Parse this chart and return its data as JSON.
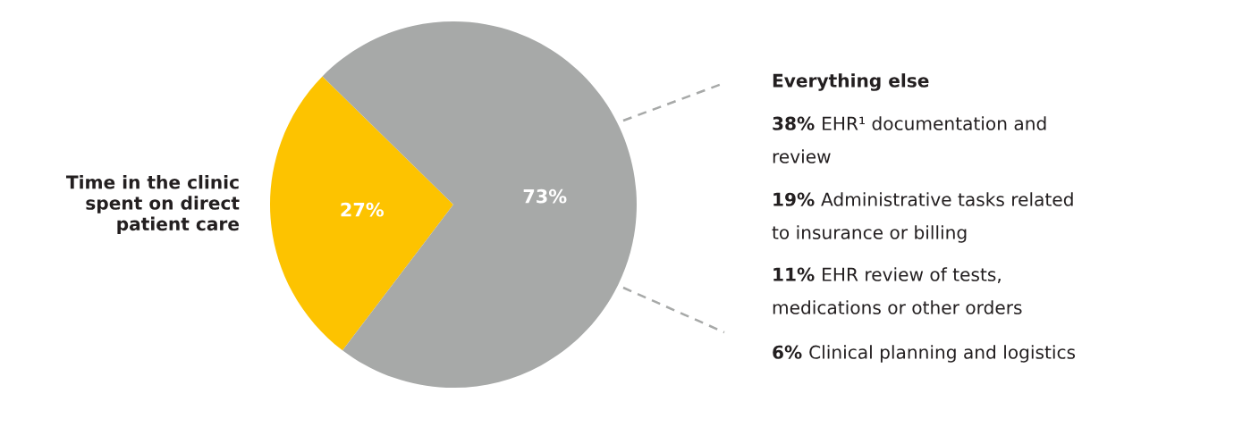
{
  "chart_data": {
    "type": "pie",
    "categories": [
      null,
      null
    ],
    "values": [
      27,
      73
    ],
    "colors": [
      "#fdc300",
      "#a7a9a8"
    ],
    "value_labels": [
      "27%",
      "73%"
    ],
    "legend": false,
    "annotations": [
      "Time in the clinic\nspent on direct\npatient care",
      "Everything else",
      "38% EHR¹ documentation and\nreview",
      "19% Administrative tasks related\nto insurance or billing",
      "11% EHR review of tests,\nmedications or other orders",
      "6% Clinical planning and logistics"
    ]
  }
}
